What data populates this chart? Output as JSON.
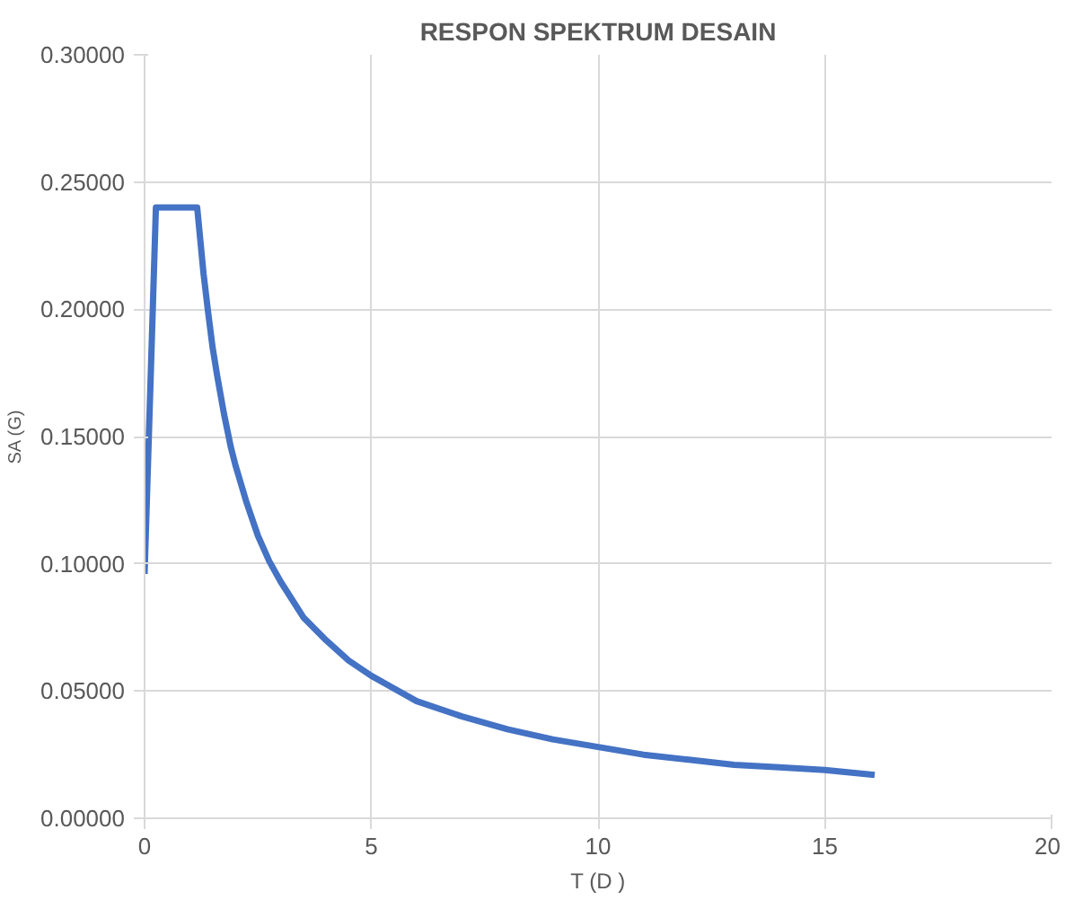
{
  "chart_data": {
    "type": "line",
    "title": "RESPON SPEKTRUM DESAIN",
    "xlabel": "T (D )",
    "ylabel": "SA (G)",
    "x": [
      0,
      0.25,
      1.16,
      1.3,
      1.4,
      1.5,
      1.6,
      1.75,
      1.9,
      2,
      2.25,
      2.5,
      2.75,
      3,
      3.5,
      4,
      4.5,
      5,
      6,
      7,
      8,
      9,
      10,
      11,
      12,
      13,
      14,
      15,
      16.1
    ],
    "series": [
      {
        "color": "#4472c4",
        "values": [
          0.096,
          0.24,
          0.24,
          0.214,
          0.199,
          0.185,
          0.174,
          0.159,
          0.146,
          0.139,
          0.124,
          0.111,
          0.101,
          0.093,
          0.079,
          0.07,
          0.062,
          0.056,
          0.046,
          0.04,
          0.035,
          0.031,
          0.028,
          0.025,
          0.023,
          0.021,
          0.02,
          0.019,
          0.017
        ]
      }
    ],
    "xlim": [
      0,
      20
    ],
    "xticks": [
      0,
      5,
      10,
      15,
      20
    ],
    "ylim": [
      0,
      0.3
    ],
    "yticks": [
      {
        "value": 0,
        "label": "0.00000"
      },
      {
        "value": 0.05,
        "label": "0.05000"
      },
      {
        "value": 0.1,
        "label": "0.10000"
      },
      {
        "value": 0.15,
        "label": "0.15000"
      },
      {
        "value": 0.2,
        "label": "0.20000"
      },
      {
        "value": 0.25,
        "label": "0.25000"
      },
      {
        "value": 0.3,
        "label": "0.30000"
      }
    ],
    "grid": true,
    "line_style": "solid"
  }
}
